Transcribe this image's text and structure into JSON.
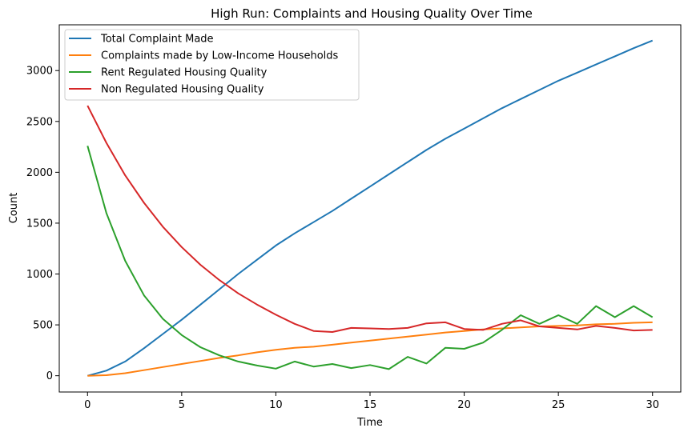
{
  "chart_data": {
    "type": "line",
    "title": "High Run: Complaints and Housing Quality Over Time",
    "xlabel": "Time",
    "ylabel": "Count",
    "xlim": [
      -1.5,
      31.5
    ],
    "ylim": [
      -160,
      3450
    ],
    "xticks": [
      0,
      5,
      10,
      15,
      20,
      25,
      30
    ],
    "yticks": [
      0,
      500,
      1000,
      1500,
      2000,
      2500,
      3000
    ],
    "grid": false,
    "legend_position": "top-left",
    "x": [
      0,
      1,
      2,
      3,
      4,
      5,
      6,
      7,
      8,
      9,
      10,
      11,
      12,
      13,
      14,
      15,
      16,
      17,
      18,
      19,
      20,
      21,
      22,
      23,
      24,
      25,
      26,
      27,
      28,
      29,
      30
    ],
    "series": [
      {
        "name": "Total Complaint Made",
        "color": "#1f77b4",
        "values": [
          0,
          50,
          140,
          270,
          410,
          550,
          700,
          850,
          1000,
          1140,
          1280,
          1400,
          1510,
          1620,
          1740,
          1860,
          1980,
          2100,
          2220,
          2330,
          2430,
          2530,
          2630,
          2720,
          2810,
          2900,
          2980,
          3060,
          3140,
          3220,
          3295
        ]
      },
      {
        "name": "Complaints made by Low-Income Households",
        "color": "#ff7f0e",
        "values": [
          0,
          5,
          25,
          55,
          85,
          115,
          145,
          175,
          200,
          230,
          255,
          275,
          285,
          305,
          325,
          345,
          365,
          385,
          405,
          425,
          440,
          455,
          465,
          475,
          485,
          490,
          495,
          505,
          510,
          520,
          525
        ]
      },
      {
        "name": "Rent Regulated Housing Quality",
        "color": "#2ca02c",
        "values": [
          2260,
          1600,
          1130,
          790,
          560,
          400,
          280,
          200,
          140,
          100,
          70,
          140,
          90,
          115,
          75,
          105,
          65,
          185,
          120,
          275,
          265,
          325,
          450,
          595,
          510,
          595,
          510,
          685,
          575,
          685,
          575
        ]
      },
      {
        "name": "Non Regulated Housing Quality",
        "color": "#d62728",
        "values": [
          2655,
          2290,
          1970,
          1700,
          1465,
          1265,
          1090,
          940,
          810,
          700,
          600,
          510,
          440,
          430,
          470,
          465,
          460,
          470,
          515,
          525,
          460,
          450,
          510,
          545,
          485,
          470,
          455,
          490,
          470,
          445,
          450
        ]
      }
    ]
  }
}
